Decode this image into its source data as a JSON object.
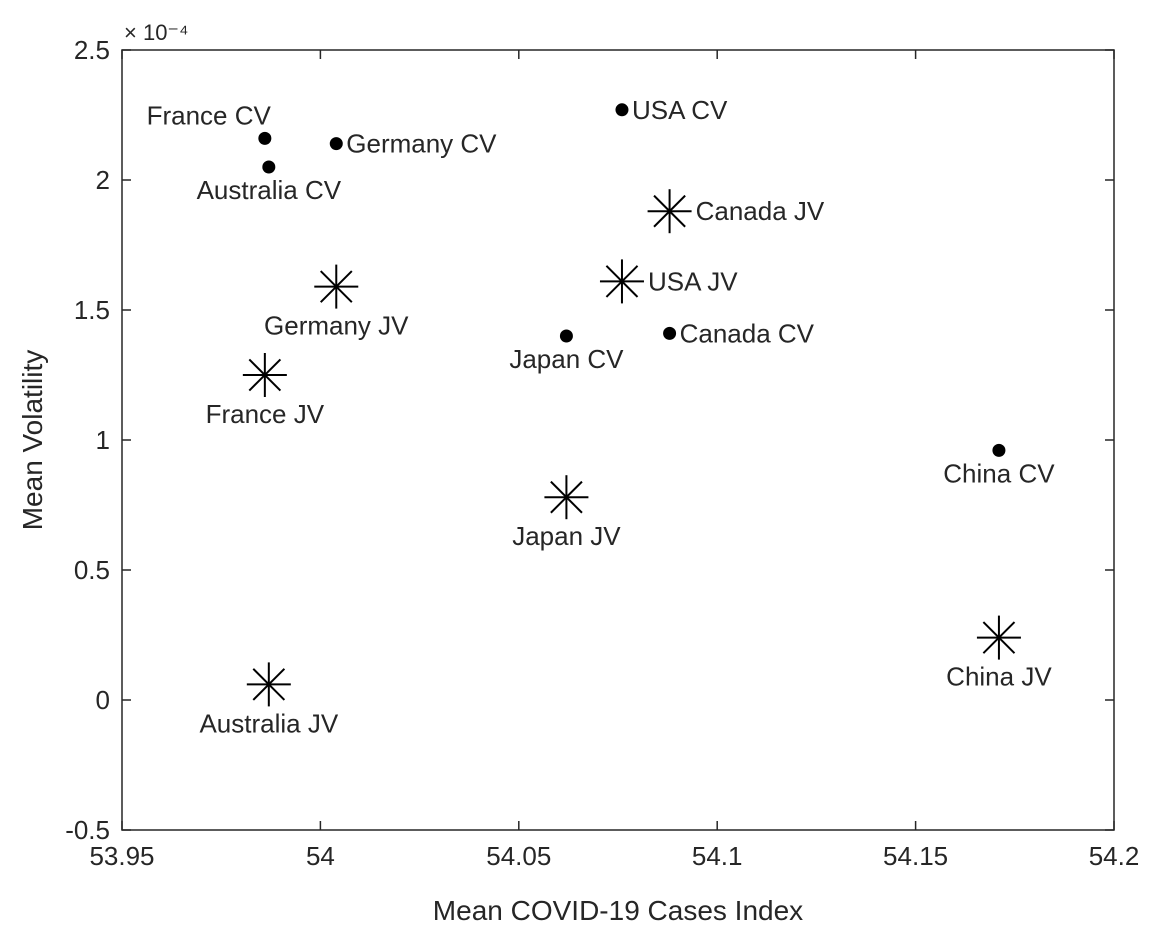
{
  "chart_data": {
    "type": "scatter",
    "xlabel": "Mean COVID-19 Cases Index",
    "ylabel": "Mean Volatility",
    "xlim": [
      53.95,
      54.2
    ],
    "ylim": [
      -0.5,
      2.5
    ],
    "y_scale_multiplier": "× 10⁻⁴",
    "x_ticks": [
      "53.95",
      "54",
      "54.05",
      "54.1",
      "54.15",
      "54.2"
    ],
    "y_ticks": [
      "-0.5",
      "0",
      "0.5",
      "1",
      "1.5",
      "2",
      "2.5"
    ],
    "grid": false,
    "markers": {
      "CV": "filled-circle",
      "JV": "asterisk"
    },
    "points": [
      {
        "label": "France CV",
        "marker": "dot",
        "x": 53.986,
        "y": 2.16,
        "label_pos": "above-left"
      },
      {
        "label": "Germany CV",
        "marker": "dot",
        "x": 54.004,
        "y": 2.14,
        "label_pos": "right"
      },
      {
        "label": "Australia CV",
        "marker": "dot",
        "x": 53.987,
        "y": 2.05,
        "label_pos": "below"
      },
      {
        "label": "USA CV",
        "marker": "dot",
        "x": 54.076,
        "y": 2.27,
        "label_pos": "right"
      },
      {
        "label": "Canada JV",
        "marker": "star",
        "x": 54.088,
        "y": 1.88,
        "label_pos": "right"
      },
      {
        "label": "Germany JV",
        "marker": "star",
        "x": 54.004,
        "y": 1.59,
        "label_pos": "below"
      },
      {
        "label": "USA JV",
        "marker": "star",
        "x": 54.076,
        "y": 1.61,
        "label_pos": "right"
      },
      {
        "label": "Canada CV",
        "marker": "dot",
        "x": 54.088,
        "y": 1.41,
        "label_pos": "right"
      },
      {
        "label": "Japan CV",
        "marker": "dot",
        "x": 54.062,
        "y": 1.4,
        "label_pos": "below"
      },
      {
        "label": "France JV",
        "marker": "star",
        "x": 53.986,
        "y": 1.25,
        "label_pos": "below"
      },
      {
        "label": "China CV",
        "marker": "dot",
        "x": 54.171,
        "y": 0.96,
        "label_pos": "below"
      },
      {
        "label": "Japan JV",
        "marker": "star",
        "x": 54.062,
        "y": 0.78,
        "label_pos": "below"
      },
      {
        "label": "China JV",
        "marker": "star",
        "x": 54.171,
        "y": 0.24,
        "label_pos": "below"
      },
      {
        "label": "Australia JV",
        "marker": "star",
        "x": 53.987,
        "y": 0.06,
        "label_pos": "below"
      }
    ]
  }
}
